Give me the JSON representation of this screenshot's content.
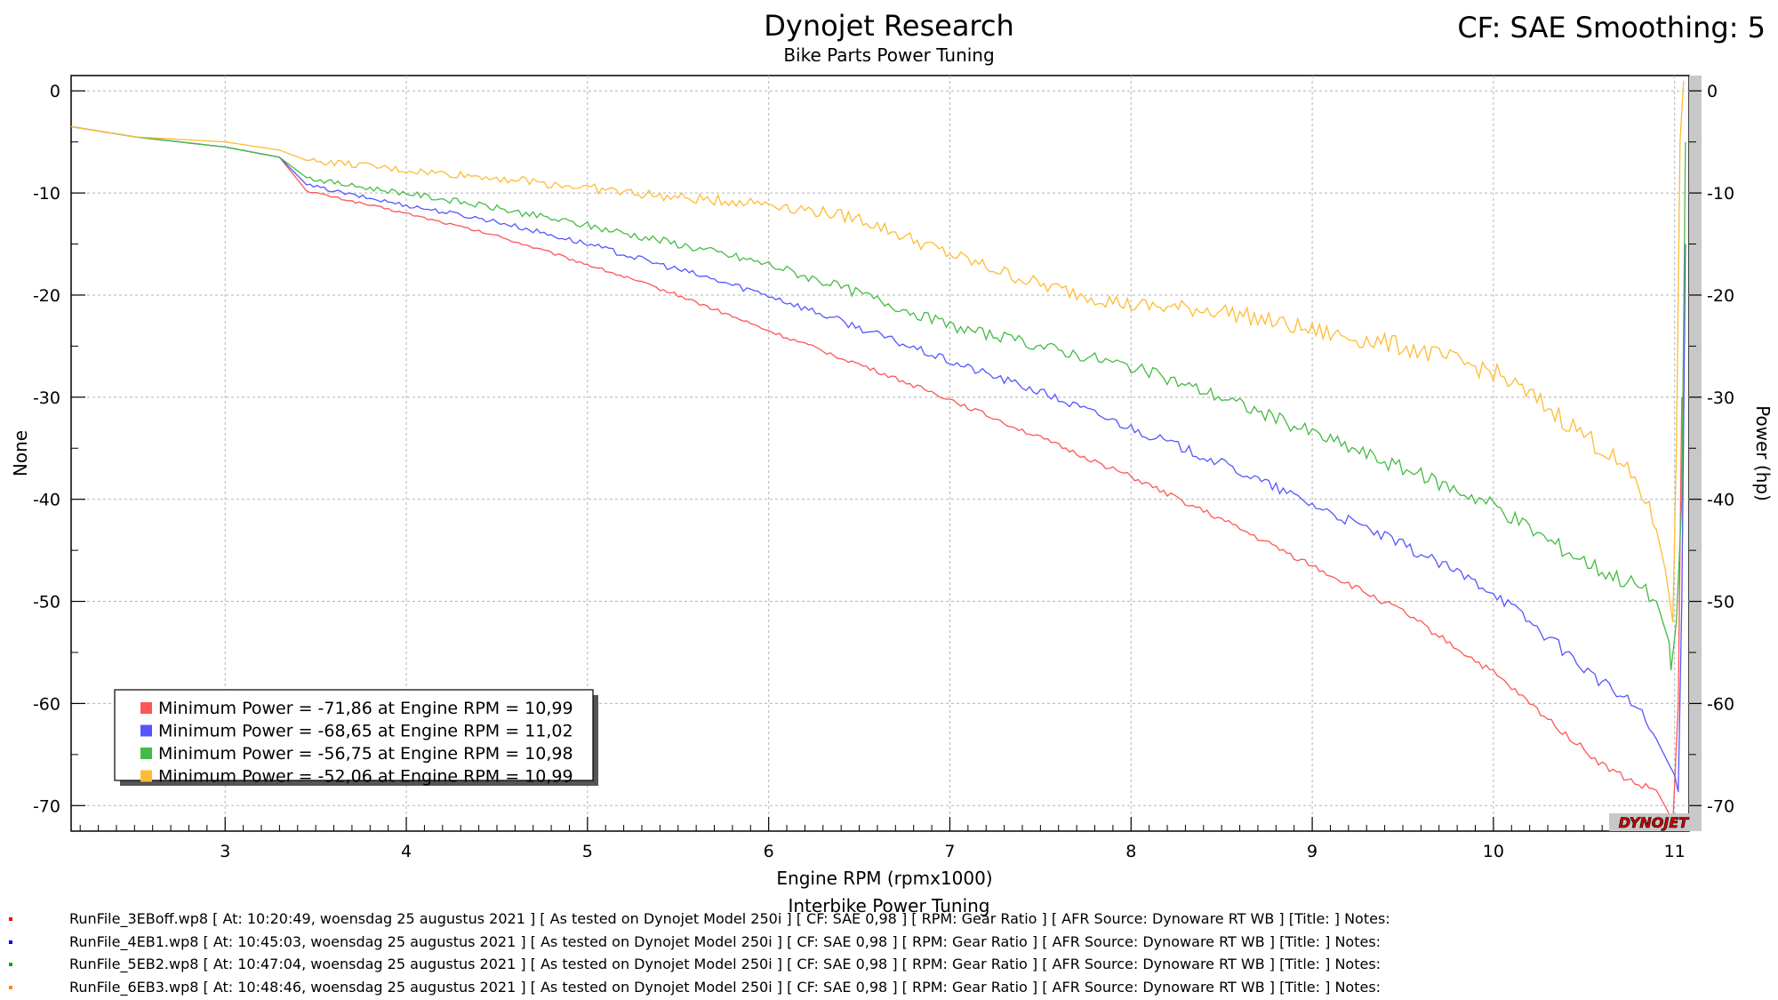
{
  "header": {
    "title": "Dynojet Research",
    "subtitle": "Bike Parts Power Tuning",
    "cf_label": "CF: SAE Smoothing: 5"
  },
  "footer": {
    "bottom_title": "Interbike Power Tuning",
    "run_files": [
      {
        "text": "RunFile_3EBoff.wp8 [ At: 10:20:49, woensdag 25 augustus 2021 ] [ As tested on Dynojet Model 250i ] [ CF: SAE 0,98 ] [ RPM: Gear Ratio ] [ AFR Source: Dynoware RT WB ] [Title: ]  Notes:",
        "color": "#ff0000"
      },
      {
        "text": "RunFile_4EB1.wp8 [ At: 10:45:03, woensdag 25 augustus 2021 ] [ As tested on Dynojet Model 250i ] [ CF: SAE 0,98 ] [ RPM: Gear Ratio ] [ AFR Source: Dynoware RT WB ] [Title: ]  Notes:",
        "color": "#0000ff"
      },
      {
        "text": "RunFile_5EB2.wp8 [ At: 10:47:04, woensdag 25 augustus 2021 ] [ As tested on Dynojet Model 250i ] [ CF: SAE 0,98 ] [ RPM: Gear Ratio ] [ AFR Source: Dynoware RT WB ] [Title: ]  Notes:",
        "color": "#00aa00"
      },
      {
        "text": "RunFile_6EB3.wp8 [ At: 10:48:46, woensdag 25 augustus 2021 ] [ As tested on Dynojet Model 250i ] [ CF: SAE 0,98 ] [ RPM: Gear Ratio ] [ AFR Source: Dynoware RT WB ] [Title: ]  Notes:",
        "color": "#ff8800"
      }
    ]
  },
  "logo_text": "DYNOJET",
  "chart_data": {
    "type": "line",
    "xlabel": "Engine RPM (rpmx1000)",
    "ylabel_left": "None",
    "ylabel_right": "Power (hp)",
    "xlim": [
      2.15,
      11.08
    ],
    "ylim": [
      -72.5,
      1.5
    ],
    "xticks": [
      3,
      4,
      5,
      6,
      7,
      8,
      9,
      10,
      11
    ],
    "yticks": [
      0,
      -10,
      -20,
      -30,
      -40,
      -50,
      -60,
      -70
    ],
    "grid": true,
    "legend": {
      "placement": "bottom-left",
      "entries": [
        "Minimum Power = -71,86 at Engine RPM = 10,99",
        "Minimum Power = -68,65 at Engine RPM = 11,02",
        "Minimum Power = -56,75 at Engine RPM = 10,98",
        "Minimum Power = -52,06 at Engine RPM = 10,99"
      ]
    },
    "series": [
      {
        "color": "#ff5555",
        "x": [
          2.15,
          2.5,
          3.0,
          3.3,
          3.45,
          3.7,
          4.0,
          4.5,
          5.0,
          5.5,
          6.0,
          6.5,
          7.0,
          7.5,
          8.0,
          8.5,
          9.0,
          9.5,
          10.0,
          10.3,
          10.6,
          10.8,
          10.9,
          10.97,
          10.99,
          11.02,
          11.04
        ],
        "y": [
          -3.5,
          -4.5,
          -5.5,
          -6.5,
          -9.8,
          -10.8,
          -12.0,
          -14.2,
          -17.0,
          -20.0,
          -23.5,
          -26.8,
          -30.2,
          -34.0,
          -37.8,
          -42.0,
          -46.5,
          -51.0,
          -57.0,
          -61.5,
          -66.0,
          -68.0,
          -68.5,
          -70.8,
          -71.86,
          -60.0,
          -30.0
        ]
      },
      {
        "color": "#5555ff",
        "x": [
          2.15,
          2.5,
          3.0,
          3.3,
          3.45,
          3.7,
          4.0,
          4.5,
          5.0,
          5.5,
          6.0,
          6.5,
          7.0,
          7.5,
          8.0,
          8.5,
          9.0,
          9.5,
          10.0,
          10.3,
          10.6,
          10.8,
          10.9,
          10.97,
          11.0,
          11.02,
          11.04,
          11.06
        ],
        "y": [
          -3.5,
          -4.5,
          -5.5,
          -6.5,
          -9.2,
          -10.2,
          -11.2,
          -12.8,
          -15.0,
          -17.5,
          -20.0,
          -23.2,
          -26.5,
          -29.5,
          -33.0,
          -36.5,
          -40.5,
          -44.5,
          -49.0,
          -53.5,
          -58.0,
          -60.5,
          -63.5,
          -66.0,
          -67.0,
          -68.65,
          -50.0,
          -15.0
        ]
      },
      {
        "color": "#44bb44",
        "x": [
          2.15,
          2.5,
          3.0,
          3.3,
          3.45,
          3.7,
          4.0,
          4.5,
          5.0,
          5.5,
          6.0,
          6.5,
          7.0,
          7.5,
          8.0,
          8.5,
          9.0,
          9.5,
          10.0,
          10.3,
          10.6,
          10.8,
          10.9,
          10.97,
          10.98,
          11.01,
          11.04,
          11.06
        ],
        "y": [
          -3.5,
          -4.5,
          -5.5,
          -6.5,
          -8.5,
          -9.3,
          -10.0,
          -11.5,
          -13.2,
          -15.0,
          -17.0,
          -19.8,
          -23.0,
          -25.0,
          -27.0,
          -30.0,
          -33.5,
          -37.0,
          -40.5,
          -44.0,
          -47.0,
          -48.5,
          -50.0,
          -54.0,
          -56.75,
          -52.0,
          -40.0,
          -5.0
        ]
      },
      {
        "color": "#ffbb33",
        "x": [
          2.15,
          2.5,
          3.0,
          3.3,
          3.45,
          3.7,
          4.0,
          4.5,
          5.0,
          5.5,
          6.0,
          6.5,
          7.0,
          7.5,
          8.0,
          8.5,
          9.0,
          9.5,
          10.0,
          10.3,
          10.6,
          10.8,
          10.9,
          10.95,
          10.99,
          11.01,
          11.03,
          11.05
        ],
        "y": [
          -3.5,
          -4.5,
          -5.0,
          -5.8,
          -6.8,
          -7.2,
          -7.8,
          -8.5,
          -9.5,
          -10.5,
          -11.0,
          -12.5,
          -16.0,
          -19.0,
          -21.0,
          -21.5,
          -23.5,
          -25.0,
          -27.5,
          -31.0,
          -35.0,
          -38.5,
          -43.0,
          -47.0,
          -52.06,
          -35.0,
          -5.0,
          1.0
        ]
      }
    ]
  }
}
